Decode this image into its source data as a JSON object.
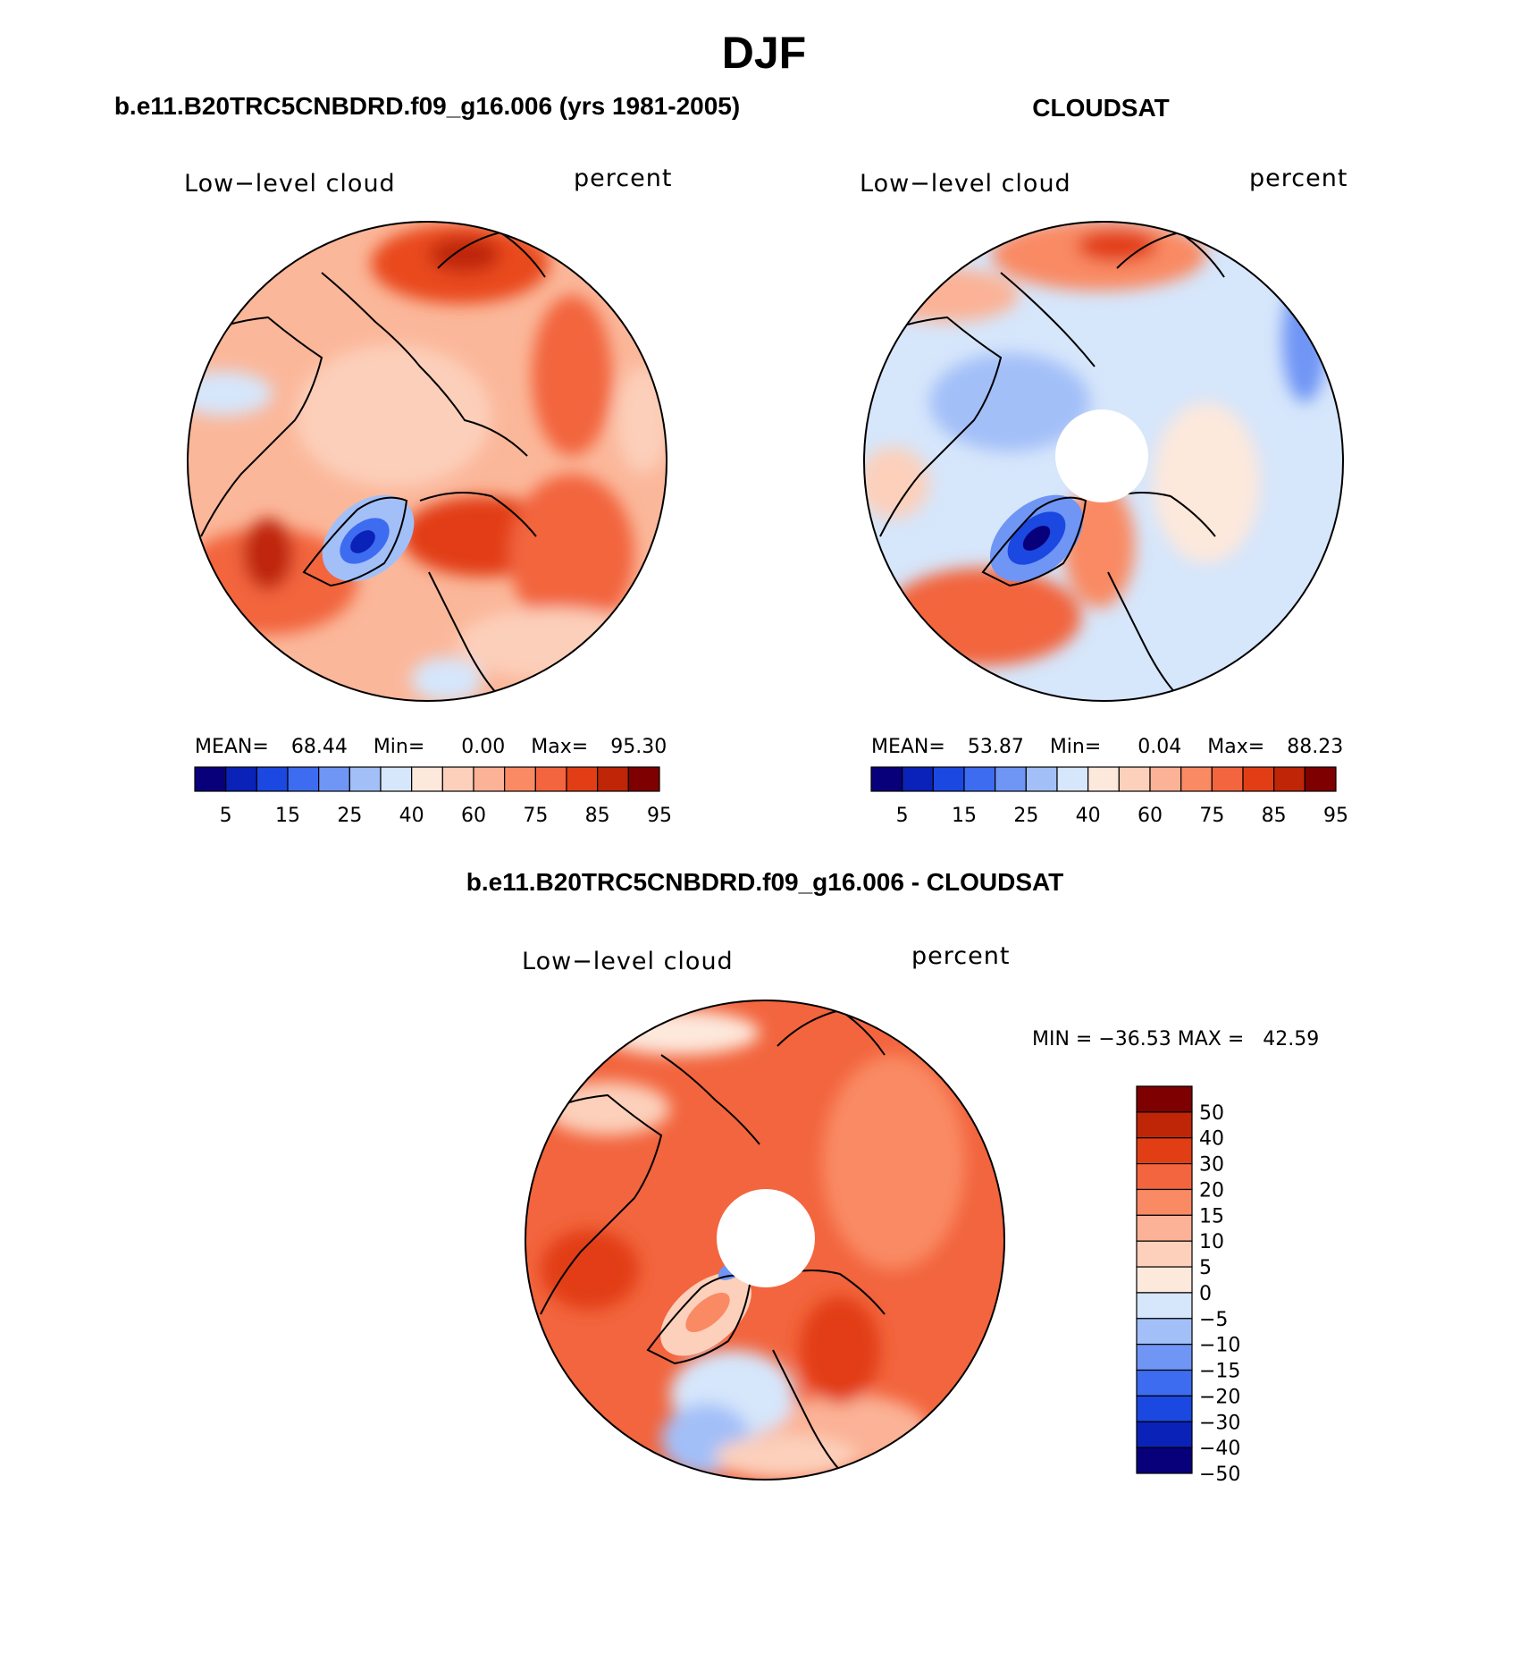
{
  "page": {
    "season": "DJF",
    "model_title": "b.e11.B20TRC5CNBDRD.f09_g16.006 (yrs 1981-2005)",
    "obs_title": "CLOUDSAT",
    "diff_title": "b.e11.B20TRC5CNBDRD.f09_g16.006 - CLOUDSAT"
  },
  "colors": {
    "abs_scale": [
      "#08007a",
      "#0a22b8",
      "#1a48e0",
      "#3d6cf0",
      "#6f95f5",
      "#a3bff8",
      "#d6e6fb",
      "#fde8dc",
      "#fcd0bb",
      "#fbb296",
      "#f98a64",
      "#f2653e",
      "#e23e16",
      "#bf2507",
      "#7e0000"
    ],
    "diff_scale": [
      "#08007a",
      "#0a22b8",
      "#1a48e0",
      "#3d6cf0",
      "#6f95f5",
      "#a3bff8",
      "#d6e6fb",
      "#fde8dc",
      "#fcd0bb",
      "#fbb296",
      "#f98a64",
      "#f2653e",
      "#e23e16",
      "#bf2507",
      "#7e0000"
    ]
  },
  "panels": [
    {
      "variable": "Low−level cloud",
      "units": "percent",
      "mean_label": "MEAN=",
      "mean": "68.44",
      "min_label": "Min=",
      "min": "0.00",
      "max_label": "Max=",
      "max": "95.30",
      "colorbar_ticks": [
        "5",
        "15",
        "25",
        "40",
        "60",
        "75",
        "85",
        "95"
      ]
    },
    {
      "variable": "Low−level cloud",
      "units": "percent",
      "mean_label": "MEAN=",
      "mean": "53.87",
      "min_label": "Min=",
      "min": "0.04",
      "max_label": "Max=",
      "max": "88.23",
      "colorbar_ticks": [
        "5",
        "15",
        "25",
        "40",
        "60",
        "75",
        "85",
        "95"
      ]
    },
    {
      "variable": "Low−level cloud",
      "units": "percent",
      "minmax_text": "MIN = −36.53 MAX =   42.59",
      "colorbar_ticks": [
        "50",
        "40",
        "30",
        "20",
        "15",
        "10",
        "5",
        "0",
        "−5",
        "−10",
        "−15",
        "−20",
        "−30",
        "−40",
        "−50"
      ]
    }
  ]
}
